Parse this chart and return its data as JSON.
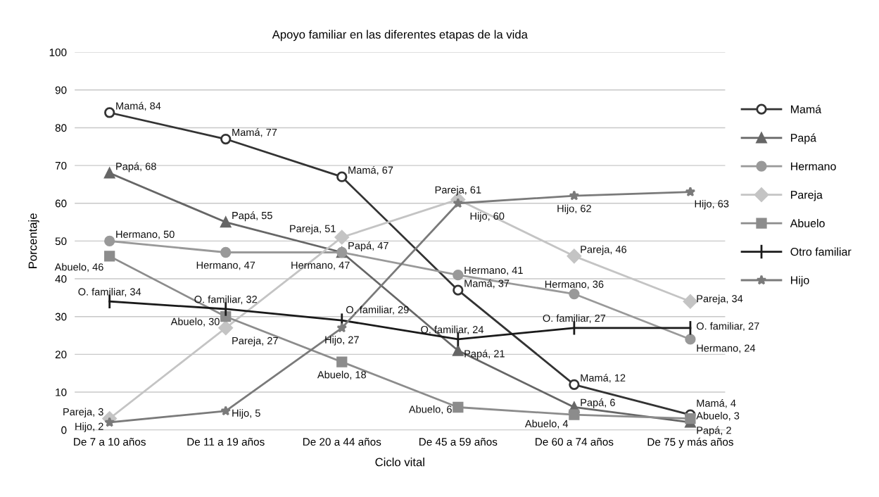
{
  "chart_data": {
    "type": "line",
    "title": "Apoyo familiar en las diferentes etapas de la vida",
    "xlabel": "Ciclo vital",
    "ylabel": "Porcentaje",
    "categories": [
      "De 7 a 10 años",
      "De 11 a 19 años",
      "De 20 a 44 años",
      "De 45 a 59 años",
      "De 60 a 74 años",
      "De 75 y más años"
    ],
    "ylim": [
      0,
      100
    ],
    "yticks": [
      0,
      10,
      20,
      30,
      40,
      50,
      60,
      70,
      80,
      90,
      100
    ],
    "grid": "y",
    "legend": "right",
    "series": [
      {
        "name": "Mamá",
        "color": "#333333",
        "marker": "circle",
        "values": [
          84,
          77,
          67,
          37,
          12,
          4
        ],
        "value_labels": [
          "Mamá, 84",
          "Mamá, 77",
          "Mamá, 67",
          "Mamá, 37",
          "Mamá, 12",
          "Mamá, 4"
        ]
      },
      {
        "name": "Papá",
        "color": "#666666",
        "marker": "triangle",
        "values": [
          68,
          55,
          47,
          21,
          6,
          2
        ],
        "value_labels": [
          "Papá, 68",
          "Papá, 55",
          "Papá, 47",
          "Papá, 21",
          "Papá, 6",
          "Papá, 2"
        ]
      },
      {
        "name": "Hermano",
        "color": "#999999",
        "marker": "circle",
        "values": [
          50,
          47,
          47,
          41,
          36,
          24
        ],
        "value_labels": [
          "Hermano, 50",
          "Hermano, 47",
          "Hermano, 47",
          "Hermano, 41",
          "Hermano, 36",
          "Hermano, 24"
        ]
      },
      {
        "name": "Pareja",
        "color": "#c4c4c4",
        "marker": "diamond",
        "values": [
          3,
          27,
          51,
          61,
          46,
          34
        ],
        "value_labels": [
          "Pareja, 3",
          "Pareja, 27",
          "Pareja, 51",
          "Pareja, 61",
          "Pareja, 46",
          "Pareja, 34"
        ]
      },
      {
        "name": "Abuelo",
        "color": "#8c8c8c",
        "marker": "square",
        "values": [
          46,
          30,
          18,
          6,
          4,
          3
        ],
        "value_labels": [
          "Abuelo, 46",
          "Abuelo, 30",
          "Abuelo, 18",
          "Abuelo, 6",
          "Abuelo, 4",
          "Abuelo, 3"
        ]
      },
      {
        "name": "Otro familiar",
        "color": "#1a1a1a",
        "values": [
          34,
          32,
          29,
          24,
          27,
          27
        ],
        "value_labels": [
          "O. familiar, 34",
          "O. familiar, 32",
          "O. familiar, 29",
          "O. familiar, 24",
          "O. familiar, 27",
          "O. familiar, 27"
        ]
      },
      {
        "name": "Hijo",
        "color": "#7a7a7a",
        "marker": "star",
        "values": [
          2,
          5,
          27,
          60,
          62,
          63
        ],
        "value_labels": [
          "Hijo, 2",
          "Hijo, 5",
          "Hijo, 27",
          "Hijo, 60",
          "Hijo, 62",
          "Hijo, 63"
        ]
      }
    ]
  }
}
